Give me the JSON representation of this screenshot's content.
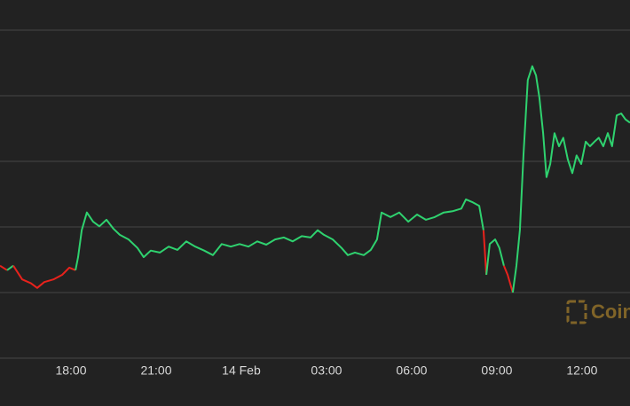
{
  "chart_data": {
    "type": "line",
    "x": [
      15.5,
      15.75,
      15.97,
      16.28,
      16.59,
      16.81,
      17.06,
      17.38,
      17.69,
      17.94,
      18.16,
      18.25,
      18.38,
      18.56,
      18.78,
      19.0,
      19.25,
      19.5,
      19.72,
      20.03,
      20.34,
      20.56,
      20.81,
      21.13,
      21.44,
      21.75,
      22.06,
      22.38,
      22.69,
      23.0,
      23.31,
      23.63,
      23.94,
      24.25,
      24.56,
      24.88,
      25.19,
      25.5,
      25.81,
      26.13,
      26.44,
      26.69,
      26.91,
      27.22,
      27.53,
      27.75,
      28.0,
      28.31,
      28.56,
      28.78,
      28.94,
      29.25,
      29.56,
      29.88,
      30.19,
      30.5,
      30.81,
      31.13,
      31.44,
      31.75,
      31.91,
      32.13,
      32.38,
      32.53,
      32.63,
      32.75,
      32.94,
      33.09,
      33.25,
      33.38,
      33.56,
      33.69,
      33.81,
      33.94,
      34.09,
      34.25,
      34.38,
      34.5,
      34.63,
      34.75,
      34.88,
      35.03,
      35.19,
      35.34,
      35.5,
      35.66,
      35.81,
      35.97,
      36.13,
      36.28,
      36.44,
      36.59,
      36.75,
      36.91,
      37.06,
      37.22,
      37.38,
      37.53,
      37.69
    ],
    "values": [
      1.41,
      1.34,
      1.41,
      1.2,
      1.14,
      1.07,
      1.16,
      1.2,
      1.27,
      1.38,
      1.34,
      1.54,
      1.95,
      2.22,
      2.08,
      2.01,
      2.11,
      1.97,
      1.88,
      1.81,
      1.68,
      1.54,
      1.64,
      1.61,
      1.7,
      1.65,
      1.78,
      1.7,
      1.64,
      1.57,
      1.74,
      1.7,
      1.74,
      1.7,
      1.78,
      1.73,
      1.81,
      1.84,
      1.78,
      1.86,
      1.84,
      1.95,
      1.88,
      1.81,
      1.68,
      1.57,
      1.61,
      1.57,
      1.65,
      1.81,
      2.22,
      2.15,
      2.22,
      2.08,
      2.19,
      2.11,
      2.15,
      2.22,
      2.24,
      2.28,
      2.42,
      2.38,
      2.32,
      1.95,
      1.27,
      1.74,
      1.81,
      1.68,
      1.41,
      1.27,
      1.0,
      1.41,
      1.95,
      3.11,
      4.24,
      4.45,
      4.31,
      3.97,
      3.43,
      2.76,
      2.96,
      3.43,
      3.23,
      3.36,
      3.03,
      2.82,
      3.09,
      2.96,
      3.3,
      3.23,
      3.3,
      3.36,
      3.23,
      3.43,
      3.23,
      3.7,
      3.73,
      3.64,
      3.59
    ],
    "xlim": [
      15.5,
      37.69
    ],
    "ylim": [
      0,
      5.46
    ],
    "xticks": [
      {
        "value": 18,
        "label": "18:00"
      },
      {
        "value": 21,
        "label": "21:00"
      },
      {
        "value": 24,
        "label": "14 Feb"
      },
      {
        "value": 27,
        "label": "03:00"
      },
      {
        "value": 30,
        "label": "06:00"
      },
      {
        "value": 33,
        "label": "09:00"
      },
      {
        "value": 36,
        "label": "12:00"
      }
    ],
    "yticks": [
      0,
      1,
      2,
      3,
      4,
      5
    ],
    "grid": true,
    "color_mode": "vs_open",
    "colors": {
      "up": "#2fd26f",
      "down": "#e8221c"
    },
    "watermark": "Coin"
  }
}
